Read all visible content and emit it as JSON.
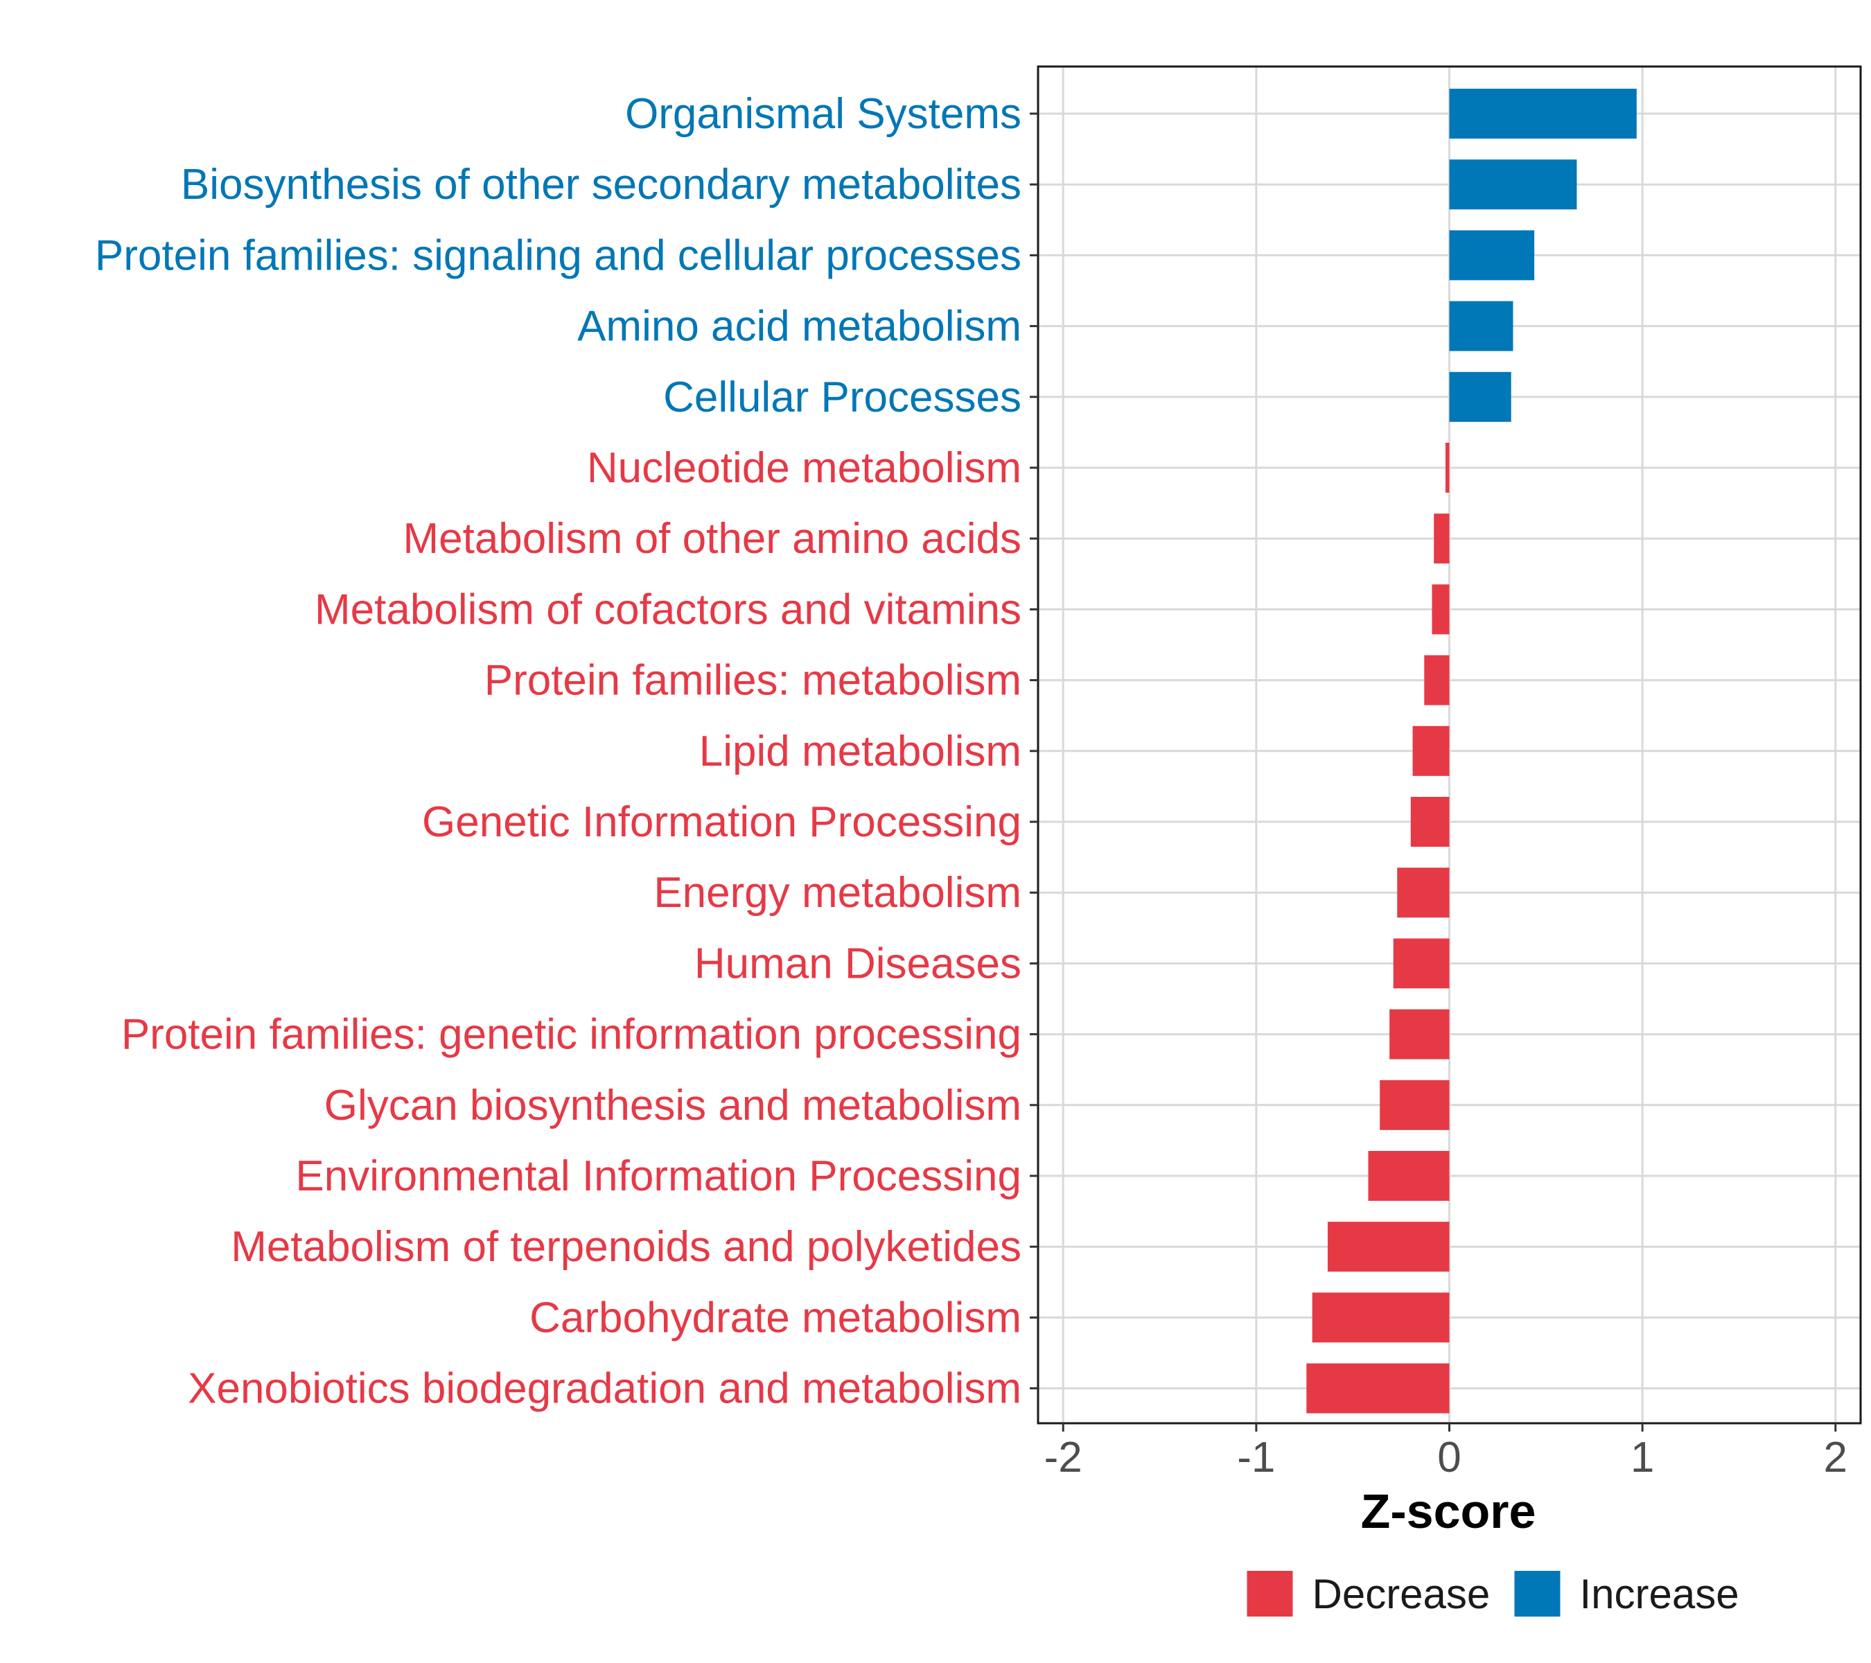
{
  "chart_data": {
    "type": "bar",
    "orientation": "horizontal",
    "categories": [
      "Organismal Systems",
      "Biosynthesis of other secondary metabolites",
      "Protein families: signaling and cellular processes",
      "Amino acid metabolism",
      "Cellular Processes",
      "Nucleotide metabolism",
      "Metabolism of other amino acids",
      "Metabolism of cofactors and vitamins",
      "Protein families: metabolism",
      "Lipid metabolism",
      "Genetic Information Processing",
      "Energy metabolism",
      "Human Diseases",
      "Protein families: genetic information processing",
      "Glycan biosynthesis and metabolism",
      "Environmental Information Processing",
      "Metabolism of terpenoids and polyketides",
      "Carbohydrate metabolism",
      "Xenobiotics biodegradation and metabolism"
    ],
    "values": [
      0.97,
      0.66,
      0.44,
      0.33,
      0.32,
      -0.02,
      -0.08,
      -0.09,
      -0.13,
      -0.19,
      -0.2,
      -0.27,
      -0.29,
      -0.31,
      -0.36,
      -0.42,
      -0.63,
      -0.71,
      -0.74
    ],
    "groups": [
      "Increase",
      "Increase",
      "Increase",
      "Increase",
      "Increase",
      "Decrease",
      "Decrease",
      "Decrease",
      "Decrease",
      "Decrease",
      "Decrease",
      "Decrease",
      "Decrease",
      "Decrease",
      "Decrease",
      "Decrease",
      "Decrease",
      "Decrease",
      "Decrease"
    ],
    "title": "",
    "xlabel": "Z-score",
    "ylabel": "",
    "xlim": [
      -2.13,
      2.13
    ],
    "xticks": [
      -2,
      -1,
      0,
      1,
      2
    ],
    "xtick_labels": [
      "-2",
      "-1",
      "0",
      "1",
      "2"
    ],
    "grid": true,
    "legend": {
      "position": "bottom",
      "entries": [
        {
          "label": "Decrease",
          "color": "#e63946"
        },
        {
          "label": "Increase",
          "color": "#0077b6"
        }
      ]
    },
    "colors": {
      "Decrease": "#e63946",
      "Increase": "#0077b6"
    }
  }
}
